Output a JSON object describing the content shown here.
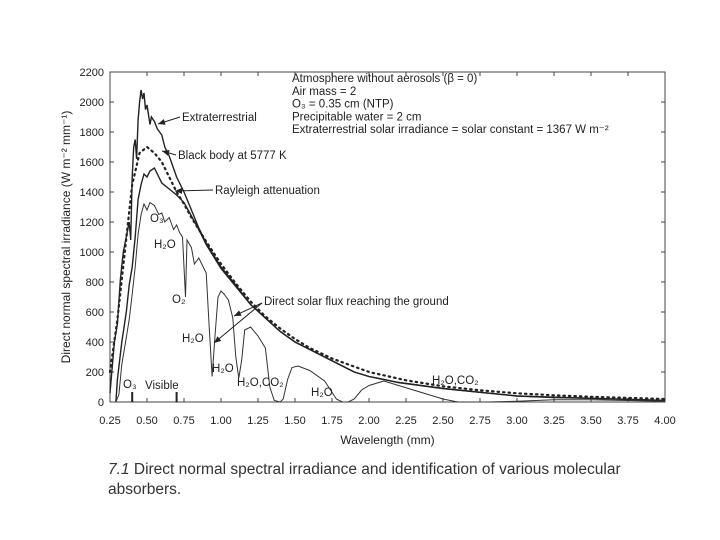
{
  "caption": {
    "number": "7.1",
    "text": "Direct normal spectral irradiance and identification of various molecular absorbers."
  },
  "conditions": [
    "Atmosphere without aerosols (β = 0)",
    "Air mass = 2",
    "O₃ = 0.35 cm (NTP)",
    "Precipitable water = 2 cm",
    "Extraterrestrial solar irradiance = solar constant = 1367 W m⁻²"
  ],
  "chart_data": {
    "type": "line",
    "xlabel": "Wavelength (mm)",
    "ylabel": "Direct normal spectral irradiance (W m⁻² mm⁻¹)",
    "xlim": [
      0.25,
      4.0
    ],
    "ylim": [
      0,
      2200
    ],
    "x_ticks": [
      "0.25",
      "0.50",
      "0.75",
      "1.00",
      "1.25",
      "1.50",
      "1.75",
      "2.00",
      "2.25",
      "2.50",
      "2.75",
      "3.00",
      "3.25",
      "3.50",
      "3.75",
      "4.00"
    ],
    "y_ticks": [
      "0",
      "200",
      "400",
      "600",
      "800",
      "1000",
      "1200",
      "1400",
      "1600",
      "1800",
      "2000",
      "2200"
    ],
    "series": [
      {
        "name": "Extraterrestrial",
        "style": "solid",
        "points": [
          [
            0.25,
            60
          ],
          [
            0.28,
            400
          ],
          [
            0.3,
            520
          ],
          [
            0.32,
            820
          ],
          [
            0.34,
            1000
          ],
          [
            0.36,
            1100
          ],
          [
            0.38,
            1200
          ],
          [
            0.39,
            1080
          ],
          [
            0.4,
            1500
          ],
          [
            0.41,
            1700
          ],
          [
            0.42,
            1750
          ],
          [
            0.43,
            1620
          ],
          [
            0.44,
            1880
          ],
          [
            0.45,
            2000
          ],
          [
            0.46,
            2080
          ],
          [
            0.47,
            2020
          ],
          [
            0.48,
            2060
          ],
          [
            0.49,
            1950
          ],
          [
            0.5,
            1980
          ],
          [
            0.52,
            1850
          ],
          [
            0.53,
            1900
          ],
          [
            0.55,
            1870
          ],
          [
            0.57,
            1820
          ],
          [
            0.6,
            1780
          ],
          [
            0.62,
            1700
          ],
          [
            0.65,
            1640
          ],
          [
            0.7,
            1500
          ],
          [
            0.75,
            1400
          ],
          [
            0.8,
            1280
          ],
          [
            0.85,
            1160
          ],
          [
            0.9,
            1060
          ],
          [
            1.0,
            900
          ],
          [
            1.1,
            780
          ],
          [
            1.2,
            650
          ],
          [
            1.3,
            560
          ],
          [
            1.4,
            470
          ],
          [
            1.5,
            400
          ],
          [
            1.6,
            350
          ],
          [
            1.7,
            300
          ],
          [
            1.8,
            250
          ],
          [
            1.9,
            200
          ],
          [
            2.0,
            170
          ],
          [
            2.2,
            130
          ],
          [
            2.5,
            90
          ],
          [
            2.75,
            65
          ],
          [
            3.0,
            40
          ],
          [
            3.25,
            30
          ],
          [
            3.5,
            25
          ],
          [
            3.75,
            18
          ],
          [
            4.0,
            10
          ]
        ]
      },
      {
        "name": "Black body at 5777 K",
        "style": "dotted",
        "points": [
          [
            0.25,
            200
          ],
          [
            0.3,
            550
          ],
          [
            0.35,
            1000
          ],
          [
            0.4,
            1450
          ],
          [
            0.45,
            1660
          ],
          [
            0.5,
            1700
          ],
          [
            0.55,
            1660
          ],
          [
            0.6,
            1600
          ],
          [
            0.65,
            1500
          ],
          [
            0.7,
            1400
          ],
          [
            0.75,
            1320
          ],
          [
            0.8,
            1230
          ],
          [
            0.9,
            1070
          ],
          [
            1.0,
            920
          ],
          [
            1.1,
            790
          ],
          [
            1.2,
            670
          ],
          [
            1.3,
            570
          ],
          [
            1.4,
            490
          ],
          [
            1.5,
            420
          ],
          [
            1.6,
            360
          ],
          [
            1.75,
            290
          ],
          [
            2.0,
            200
          ],
          [
            2.25,
            145
          ],
          [
            2.5,
            105
          ],
          [
            2.75,
            78
          ],
          [
            3.0,
            58
          ],
          [
            3.25,
            45
          ],
          [
            3.5,
            35
          ],
          [
            3.75,
            27
          ],
          [
            4.0,
            20
          ]
        ]
      },
      {
        "name": "Rayleigh attenuation",
        "style": "solid",
        "points": [
          [
            0.29,
            0
          ],
          [
            0.3,
            150
          ],
          [
            0.33,
            400
          ],
          [
            0.36,
            600
          ],
          [
            0.38,
            780
          ],
          [
            0.4,
            900
          ],
          [
            0.42,
            1100
          ],
          [
            0.44,
            1350
          ],
          [
            0.46,
            1450
          ],
          [
            0.48,
            1520
          ],
          [
            0.5,
            1500
          ],
          [
            0.52,
            1540
          ],
          [
            0.55,
            1560
          ],
          [
            0.58,
            1500
          ],
          [
            0.6,
            1460
          ],
          [
            0.65,
            1420
          ],
          [
            0.7,
            1380
          ],
          [
            0.75,
            1330
          ],
          [
            0.8,
            1240
          ],
          [
            0.85,
            1150
          ],
          [
            0.9,
            1050
          ],
          [
            1.0,
            890
          ],
          [
            1.1,
            770
          ],
          [
            1.2,
            650
          ],
          [
            1.3,
            560
          ],
          [
            1.4,
            470
          ],
          [
            1.5,
            400
          ],
          [
            1.6,
            350
          ],
          [
            1.7,
            300
          ],
          [
            1.8,
            250
          ],
          [
            1.9,
            200
          ],
          [
            2.0,
            170
          ],
          [
            2.2,
            130
          ],
          [
            2.5,
            90
          ],
          [
            3.0,
            40
          ],
          [
            3.5,
            25
          ],
          [
            4.0,
            10
          ]
        ]
      },
      {
        "name": "Direct solar flux reaching the ground",
        "style": "solid-thin",
        "points": [
          [
            0.29,
            0
          ],
          [
            0.31,
            50
          ],
          [
            0.33,
            250
          ],
          [
            0.36,
            430
          ],
          [
            0.38,
            550
          ],
          [
            0.4,
            720
          ],
          [
            0.42,
            900
          ],
          [
            0.44,
            1120
          ],
          [
            0.46,
            1250
          ],
          [
            0.48,
            1320
          ],
          [
            0.5,
            1280
          ],
          [
            0.52,
            1330
          ],
          [
            0.55,
            1310
          ],
          [
            0.58,
            1250
          ],
          [
            0.6,
            1260
          ],
          [
            0.62,
            1200
          ],
          [
            0.65,
            1230
          ],
          [
            0.68,
            1150
          ],
          [
            0.7,
            1180
          ],
          [
            0.72,
            1130
          ],
          [
            0.74,
            1100
          ],
          [
            0.76,
            700
          ],
          [
            0.77,
            1080
          ],
          [
            0.8,
            1030
          ],
          [
            0.82,
            920
          ],
          [
            0.85,
            960
          ],
          [
            0.88,
            900
          ],
          [
            0.9,
            860
          ],
          [
            0.92,
            500
          ],
          [
            0.94,
            170
          ],
          [
            0.96,
            450
          ],
          [
            0.98,
            700
          ],
          [
            1.0,
            740
          ],
          [
            1.02,
            720
          ],
          [
            1.05,
            680
          ],
          [
            1.08,
            560
          ],
          [
            1.1,
            300
          ],
          [
            1.12,
            160
          ],
          [
            1.14,
            280
          ],
          [
            1.16,
            480
          ],
          [
            1.2,
            500
          ],
          [
            1.25,
            440
          ],
          [
            1.3,
            360
          ],
          [
            1.33,
            100
          ],
          [
            1.36,
            10
          ],
          [
            1.4,
            0
          ],
          [
            1.42,
            20
          ],
          [
            1.45,
            150
          ],
          [
            1.48,
            230
          ],
          [
            1.52,
            240
          ],
          [
            1.6,
            210
          ],
          [
            1.7,
            140
          ],
          [
            1.78,
            20
          ],
          [
            1.82,
            0
          ],
          [
            1.86,
            0
          ],
          [
            1.9,
            20
          ],
          [
            1.95,
            80
          ],
          [
            2.0,
            110
          ],
          [
            2.1,
            140
          ],
          [
            2.2,
            110
          ],
          [
            2.3,
            80
          ],
          [
            2.4,
            50
          ],
          [
            2.5,
            20
          ],
          [
            2.6,
            0
          ],
          [
            2.8,
            0
          ],
          [
            3.0,
            5
          ],
          [
            3.25,
            15
          ],
          [
            3.5,
            15
          ],
          [
            3.75,
            10
          ],
          [
            4.0,
            5
          ]
        ]
      }
    ],
    "annotations": [
      {
        "text": "Extraterrestrial",
        "type": "series-label"
      },
      {
        "text": "Black body at 5777 K",
        "type": "series-label"
      },
      {
        "text": "Rayleigh attenuation",
        "type": "series-label"
      },
      {
        "text": "Direct solar flux reaching the ground",
        "type": "series-label"
      },
      {
        "text": "O₃",
        "type": "absorber"
      },
      {
        "text": "H₂O",
        "type": "absorber"
      },
      {
        "text": "O₂",
        "type": "absorber"
      },
      {
        "text": "H₂O",
        "type": "absorber"
      },
      {
        "text": "H₂O",
        "type": "absorber"
      },
      {
        "text": "H₂O,CO₂",
        "type": "absorber"
      },
      {
        "text": "H₂O",
        "type": "absorber"
      },
      {
        "text": "H₂O,CO₂",
        "type": "absorber"
      },
      {
        "text": "O₃",
        "type": "absorber"
      },
      {
        "text": "Visible",
        "type": "band",
        "range": [
          0.4,
          0.7
        ]
      }
    ]
  }
}
